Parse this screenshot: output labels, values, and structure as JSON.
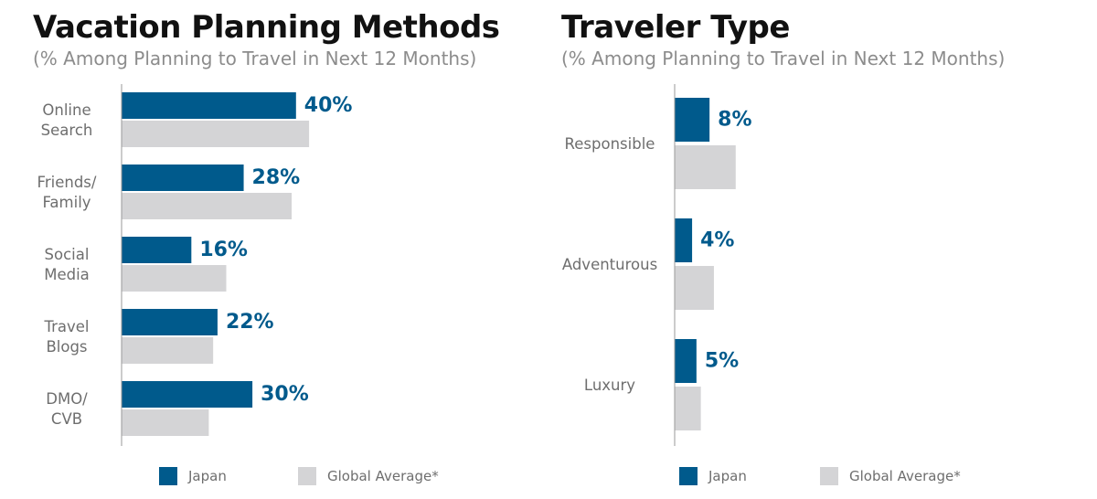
{
  "colors": {
    "japan": "#005a8c",
    "global": "#d4d4d6",
    "axis": "#9a9a9a",
    "value_text": "#005a8c"
  },
  "legend": {
    "japan_label": "Japan",
    "global_label": "Global Average*"
  },
  "panels": [
    {
      "title": "Vacation Planning Methods",
      "subtitle": "(% Among Planning to Travel in Next 12 Months)"
    },
    {
      "title": "Traveler Type",
      "subtitle": "(% Among Planning to Travel in Next 12 Months)"
    }
  ],
  "chart_data": [
    {
      "type": "bar",
      "orientation": "horizontal",
      "title": "Vacation Planning Methods",
      "subtitle": "(% Among Planning to Travel in Next 12 Months)",
      "categories": [
        [
          "Online",
          "Search"
        ],
        [
          "Friends/",
          "Family"
        ],
        [
          "Social",
          "Media"
        ],
        [
          "Travel",
          "Blogs"
        ],
        [
          "DMO/",
          "CVB"
        ]
      ],
      "series": [
        {
          "name": "Japan",
          "values": [
            40,
            28,
            16,
            22,
            30
          ]
        },
        {
          "name": "Global Average*",
          "values": [
            43,
            39,
            24,
            21,
            20
          ]
        }
      ],
      "data_labels": [
        "40%",
        "28%",
        "16%",
        "22%",
        "30%"
      ],
      "xlim": [
        0,
        100
      ],
      "grid": false,
      "legend_position": "bottom"
    },
    {
      "type": "bar",
      "orientation": "horizontal",
      "title": "Traveler Type",
      "subtitle": "(% Among Planning to Travel in Next 12 Months)",
      "categories": [
        [
          "Responsible"
        ],
        [
          "Adventurous"
        ],
        [
          "Luxury"
        ]
      ],
      "series": [
        {
          "name": "Japan",
          "values": [
            8,
            4,
            5
          ]
        },
        {
          "name": "Global Average*",
          "values": [
            14,
            9,
            6
          ]
        }
      ],
      "data_labels": [
        "8%",
        "4%",
        "5%"
      ],
      "xlim": [
        0,
        100
      ],
      "grid": false,
      "legend_position": "bottom"
    }
  ]
}
